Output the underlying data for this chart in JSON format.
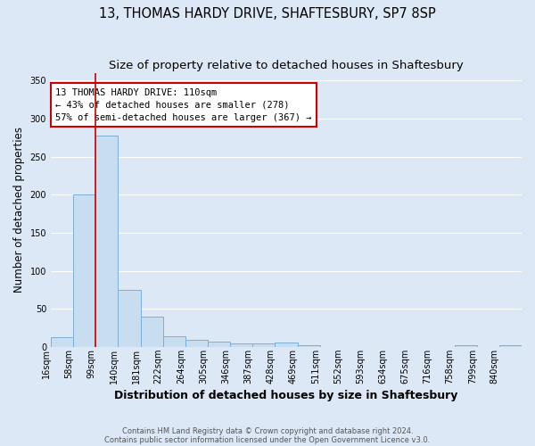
{
  "title": "13, THOMAS HARDY DRIVE, SHAFTESBURY, SP7 8SP",
  "subtitle": "Size of property relative to detached houses in Shaftesbury",
  "xlabel": "Distribution of detached houses by size in Shaftesbury",
  "ylabel": "Number of detached properties",
  "footer_line1": "Contains HM Land Registry data © Crown copyright and database right 2024.",
  "footer_line2": "Contains public sector information licensed under the Open Government Licence v3.0.",
  "bin_labels": [
    "16sqm",
    "58sqm",
    "99sqm",
    "140sqm",
    "181sqm",
    "222sqm",
    "264sqm",
    "305sqm",
    "346sqm",
    "387sqm",
    "428sqm",
    "469sqm",
    "511sqm",
    "552sqm",
    "593sqm",
    "634sqm",
    "675sqm",
    "716sqm",
    "758sqm",
    "799sqm",
    "840sqm"
  ],
  "bar_values": [
    13,
    200,
    278,
    75,
    40,
    14,
    10,
    7,
    5,
    5,
    6,
    3,
    0,
    0,
    0,
    0,
    0,
    0,
    3,
    0,
    3
  ],
  "bar_color": "#c9ddf0",
  "bar_edge_color": "#7bafd4",
  "vline_index": 2,
  "vline_color": "#cc0000",
  "annotation_line1": "13 THOMAS HARDY DRIVE: 110sqm",
  "annotation_line2": "← 43% of detached houses are smaller (278)",
  "annotation_line3": "57% of semi-detached houses are larger (367) →",
  "annotation_box_facecolor": "#ffffff",
  "annotation_box_edgecolor": "#cc0000",
  "ylim": [
    0,
    360
  ],
  "yticks": [
    0,
    50,
    100,
    150,
    200,
    250,
    300,
    350
  ],
  "background_color": "#dce8f5",
  "grid_color": "#ffffff",
  "title_fontsize": 10.5,
  "subtitle_fontsize": 9.5,
  "xlabel_fontsize": 9,
  "ylabel_fontsize": 8.5,
  "tick_fontsize": 7,
  "annotation_fontsize": 7.5,
  "footer_fontsize": 6
}
